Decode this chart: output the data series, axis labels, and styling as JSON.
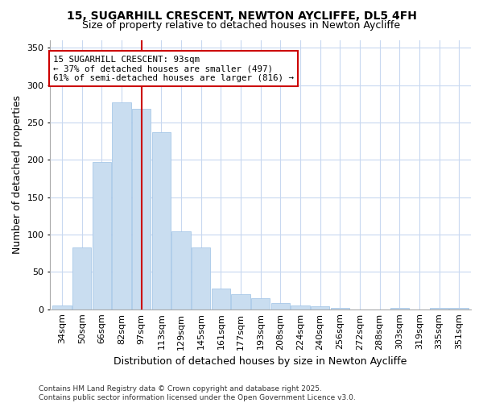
{
  "title": "15, SUGARHILL CRESCENT, NEWTON AYCLIFFE, DL5 4FH",
  "subtitle": "Size of property relative to detached houses in Newton Aycliffe",
  "xlabel": "Distribution of detached houses by size in Newton Aycliffe",
  "ylabel": "Number of detached properties",
  "bar_color": "#c9ddf0",
  "bar_edge_color": "#a8c8e8",
  "background_color": "#ffffff",
  "grid_color": "#c8d8f0",
  "annotation_box_color": "#cc0000",
  "annotation_text": "15 SUGARHILL CRESCENT: 93sqm\n← 37% of detached houses are smaller (497)\n61% of semi-detached houses are larger (816) →",
  "property_line_x": 4,
  "categories": [
    "34sqm",
    "50sqm",
    "66sqm",
    "82sqm",
    "97sqm",
    "113sqm",
    "129sqm",
    "145sqm",
    "161sqm",
    "177sqm",
    "193sqm",
    "208sqm",
    "224sqm",
    "240sqm",
    "256sqm",
    "272sqm",
    "288sqm",
    "303sqm",
    "319sqm",
    "335sqm",
    "351sqm"
  ],
  "values": [
    5,
    83,
    197,
    277,
    268,
    237,
    104,
    83,
    28,
    20,
    15,
    8,
    5,
    4,
    2,
    0,
    0,
    2,
    0,
    2,
    2
  ],
  "ylim": [
    0,
    360
  ],
  "yticks": [
    0,
    50,
    100,
    150,
    200,
    250,
    300,
    350
  ],
  "footer": "Contains HM Land Registry data © Crown copyright and database right 2025.\nContains public sector information licensed under the Open Government Licence v3.0.",
  "title_fontsize": 10,
  "subtitle_fontsize": 9,
  "axis_label_fontsize": 9,
  "tick_fontsize": 8,
  "footer_fontsize": 6.5
}
